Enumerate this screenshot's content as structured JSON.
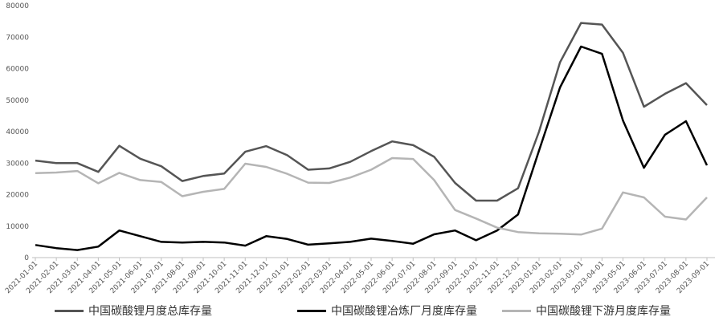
{
  "chart_data": {
    "type": "line",
    "title": "",
    "xlabel": "",
    "ylabel": "",
    "ylim": [
      0,
      80000
    ],
    "yticks": [
      "0",
      "10000",
      "20000",
      "30000",
      "40000",
      "50000",
      "60000",
      "70000",
      "80000"
    ],
    "grid": false,
    "legend_position": "bottom",
    "categories": [
      "2021-01-01",
      "2021-02-01",
      "2021-03-01",
      "2021-04-01",
      "2021-05-01",
      "2021-06-01",
      "2021-07-01",
      "2021-08-01",
      "2021-09-01",
      "2021-10-01",
      "2021-11-01",
      "2021-12-01",
      "2022-01-01",
      "2022-02-01",
      "2022-03-01",
      "2022-04-01",
      "2022-05-01",
      "2022-06-01",
      "2022-07-01",
      "2022-08-01",
      "2022-09-01",
      "2022-10-01",
      "2022-11-01",
      "2022-12-01",
      "2023-01-01",
      "2023-02-01",
      "2023-03-01",
      "2023-04-01",
      "2023-05-01",
      "2023-06-01",
      "2023-07-01",
      "2023-08-01",
      "2023-09-01"
    ],
    "series": [
      {
        "name": "中国碳酸锂月度总库存量",
        "color": "#555555",
        "values": [
          30800,
          30000,
          30000,
          27200,
          35500,
          31400,
          29000,
          24300,
          25900,
          26700,
          33600,
          35400,
          32500,
          27900,
          28300,
          30400,
          33800,
          36900,
          35700,
          32000,
          23700,
          18100,
          18100,
          22000,
          40000,
          62000,
          74500,
          74000,
          65000,
          47900,
          52000,
          55400,
          48400
        ]
      },
      {
        "name": "中国碳酸锂冶炼厂月度库存量",
        "color": "#000000",
        "values": [
          4000,
          3000,
          2400,
          3500,
          8600,
          6800,
          5000,
          4800,
          5000,
          4800,
          3800,
          6800,
          5900,
          4100,
          4500,
          5000,
          6000,
          5300,
          4400,
          7400,
          8600,
          5500,
          8600,
          13700,
          34000,
          54000,
          67000,
          64700,
          43500,
          28500,
          39000,
          43300,
          29300
        ]
      },
      {
        "name": "中国碳酸锂下游月度库存量",
        "color": "#b5b5b5",
        "values": [
          26800,
          27000,
          27500,
          23600,
          26900,
          24600,
          24000,
          19500,
          20900,
          21800,
          29800,
          28800,
          26600,
          23800,
          23700,
          25400,
          27900,
          31600,
          31300,
          24600,
          15100,
          12400,
          9500,
          8100,
          7700,
          7600,
          7300,
          9200,
          20700,
          19100,
          13000,
          12100,
          19100
        ]
      }
    ]
  }
}
